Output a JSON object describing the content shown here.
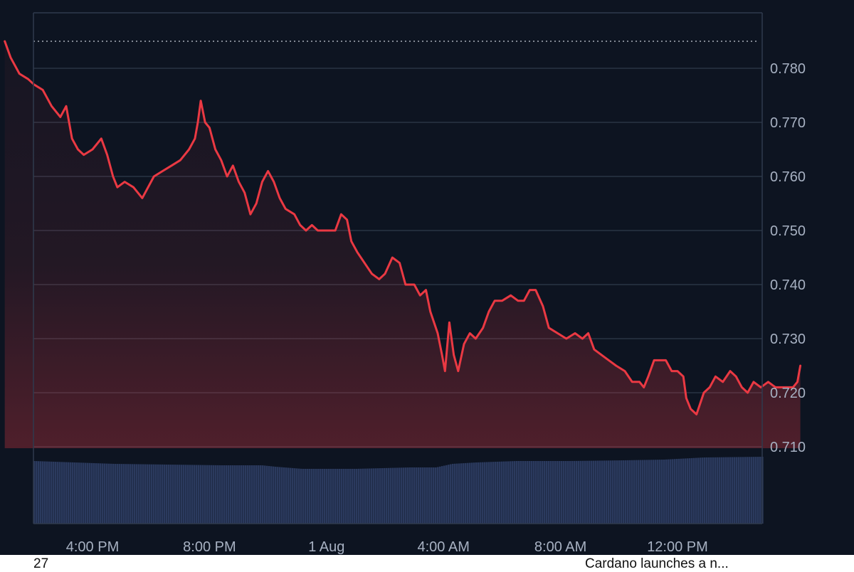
{
  "chart_data": {
    "type": "line",
    "title": "",
    "xlabel": "",
    "ylabel": "",
    "ylim": [
      0.705,
      0.789
    ],
    "y_ticks": [
      0.71,
      0.72,
      0.73,
      0.74,
      0.75,
      0.76,
      0.77,
      0.78
    ],
    "y_tick_labels": [
      "0.710",
      "0.720",
      "0.730",
      "0.740",
      "0.750",
      "0.760",
      "0.770",
      "0.780"
    ],
    "x_range_hours": [
      13.0,
      37.75
    ],
    "x_ticks": [
      {
        "label": "4:00 PM",
        "t": 16
      },
      {
        "label": "8:00 PM",
        "t": 20
      },
      {
        "label": "1 Aug",
        "t": 24
      },
      {
        "label": "4:00 AM",
        "t": 28
      },
      {
        "label": "8:00 AM",
        "t": 32
      },
      {
        "label": "12:00 PM",
        "t": 36
      }
    ],
    "reference_line": 0.785,
    "line_color": "#ea3943",
    "volume_color": "#2b3a5e",
    "grid": true,
    "series": [
      {
        "values": [
          [
            13.0,
            0.785
          ],
          [
            13.2,
            0.782
          ],
          [
            13.5,
            0.779
          ],
          [
            13.8,
            0.778
          ],
          [
            14.0,
            0.777
          ],
          [
            14.3,
            0.776
          ],
          [
            14.6,
            0.773
          ],
          [
            14.9,
            0.771
          ],
          [
            15.1,
            0.773
          ],
          [
            15.3,
            0.767
          ],
          [
            15.5,
            0.765
          ],
          [
            15.7,
            0.764
          ],
          [
            16.0,
            0.765
          ],
          [
            16.3,
            0.767
          ],
          [
            16.5,
            0.764
          ],
          [
            16.7,
            0.76
          ],
          [
            16.85,
            0.758
          ],
          [
            17.1,
            0.759
          ],
          [
            17.4,
            0.758
          ],
          [
            17.7,
            0.756
          ],
          [
            17.9,
            0.758
          ],
          [
            18.1,
            0.76
          ],
          [
            18.4,
            0.761
          ],
          [
            18.7,
            0.762
          ],
          [
            19.0,
            0.763
          ],
          [
            19.3,
            0.765
          ],
          [
            19.5,
            0.767
          ],
          [
            19.6,
            0.77
          ],
          [
            19.7,
            0.774
          ],
          [
            19.85,
            0.77
          ],
          [
            20.0,
            0.769
          ],
          [
            20.2,
            0.765
          ],
          [
            20.4,
            0.763
          ],
          [
            20.6,
            0.76
          ],
          [
            20.8,
            0.762
          ],
          [
            21.0,
            0.759
          ],
          [
            21.2,
            0.757
          ],
          [
            21.4,
            0.753
          ],
          [
            21.6,
            0.755
          ],
          [
            21.8,
            0.759
          ],
          [
            22.0,
            0.761
          ],
          [
            22.2,
            0.759
          ],
          [
            22.4,
            0.756
          ],
          [
            22.6,
            0.754
          ],
          [
            22.9,
            0.753
          ],
          [
            23.1,
            0.751
          ],
          [
            23.3,
            0.75
          ],
          [
            23.5,
            0.751
          ],
          [
            23.7,
            0.75
          ],
          [
            24.0,
            0.75
          ],
          [
            24.3,
            0.75
          ],
          [
            24.5,
            0.753
          ],
          [
            24.7,
            0.752
          ],
          [
            24.85,
            0.748
          ],
          [
            25.05,
            0.746
          ],
          [
            25.3,
            0.744
          ],
          [
            25.55,
            0.742
          ],
          [
            25.8,
            0.741
          ],
          [
            26.0,
            0.742
          ],
          [
            26.25,
            0.745
          ],
          [
            26.5,
            0.744
          ],
          [
            26.7,
            0.74
          ],
          [
            27.0,
            0.74
          ],
          [
            27.2,
            0.738
          ],
          [
            27.4,
            0.739
          ],
          [
            27.55,
            0.735
          ],
          [
            27.8,
            0.731
          ],
          [
            27.95,
            0.727
          ],
          [
            28.05,
            0.724
          ],
          [
            28.2,
            0.733
          ],
          [
            28.35,
            0.727
          ],
          [
            28.5,
            0.724
          ],
          [
            28.7,
            0.729
          ],
          [
            28.9,
            0.731
          ],
          [
            29.1,
            0.73
          ],
          [
            29.35,
            0.732
          ],
          [
            29.55,
            0.735
          ],
          [
            29.75,
            0.737
          ],
          [
            30.0,
            0.737
          ],
          [
            30.3,
            0.738
          ],
          [
            30.55,
            0.737
          ],
          [
            30.75,
            0.737
          ],
          [
            30.95,
            0.739
          ],
          [
            31.15,
            0.739
          ],
          [
            31.4,
            0.736
          ],
          [
            31.6,
            0.732
          ],
          [
            31.9,
            0.731
          ],
          [
            32.2,
            0.73
          ],
          [
            32.5,
            0.731
          ],
          [
            32.75,
            0.73
          ],
          [
            32.95,
            0.731
          ],
          [
            33.15,
            0.728
          ],
          [
            33.4,
            0.727
          ],
          [
            33.65,
            0.726
          ],
          [
            33.9,
            0.725
          ],
          [
            34.2,
            0.724
          ],
          [
            34.45,
            0.722
          ],
          [
            34.7,
            0.722
          ],
          [
            34.85,
            0.721
          ],
          [
            35.0,
            0.723
          ],
          [
            35.2,
            0.726
          ],
          [
            35.4,
            0.726
          ],
          [
            35.6,
            0.726
          ],
          [
            35.8,
            0.724
          ],
          [
            36.0,
            0.724
          ],
          [
            36.2,
            0.723
          ],
          [
            36.3,
            0.719
          ],
          [
            36.45,
            0.717
          ],
          [
            36.65,
            0.716
          ],
          [
            36.9,
            0.72
          ],
          [
            37.1,
            0.721
          ],
          [
            37.3,
            0.723
          ],
          [
            37.55,
            0.722
          ],
          [
            37.8,
            0.724
          ],
          [
            38.0,
            0.723
          ],
          [
            38.2,
            0.721
          ],
          [
            38.4,
            0.72
          ],
          [
            38.6,
            0.722
          ],
          [
            38.85,
            0.721
          ],
          [
            39.1,
            0.722
          ],
          [
            39.35,
            0.721
          ],
          [
            39.55,
            0.721
          ],
          [
            39.75,
            0.721
          ],
          [
            39.95,
            0.721
          ],
          [
            40.1,
            0.722
          ],
          [
            40.2,
            0.725
          ]
        ]
      }
    ],
    "volume": [
      [
        13.0,
        0.88
      ],
      [
        14.5,
        0.86
      ],
      [
        16.0,
        0.84
      ],
      [
        18.0,
        0.83
      ],
      [
        20.0,
        0.82
      ],
      [
        21.5,
        0.82
      ],
      [
        22.0,
        0.8
      ],
      [
        23.0,
        0.77
      ],
      [
        25.0,
        0.77
      ],
      [
        26.0,
        0.78
      ],
      [
        27.0,
        0.79
      ],
      [
        28.0,
        0.79
      ],
      [
        28.6,
        0.84
      ],
      [
        29.5,
        0.86
      ],
      [
        31.0,
        0.88
      ],
      [
        33.0,
        0.88
      ],
      [
        35.0,
        0.89
      ],
      [
        36.5,
        0.9
      ],
      [
        38.0,
        0.93
      ],
      [
        40.2,
        0.94
      ]
    ]
  },
  "footer": {
    "left_text": "27",
    "right_text": "Cardano launches a n..."
  }
}
